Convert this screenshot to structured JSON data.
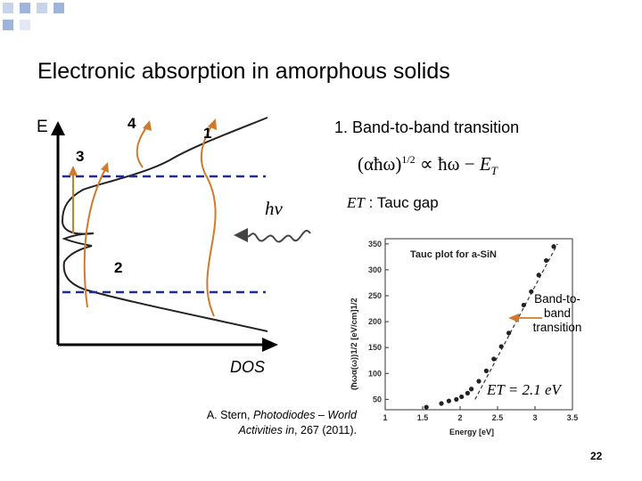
{
  "slide": {
    "title": "Electronic absorption in amorphous solids",
    "page_number": "22"
  },
  "diagram": {
    "energy_axis_label": "E",
    "dos_axis_label": "DOS",
    "photon_label": "hν",
    "transition_numbers": {
      "one": "1",
      "two": "2",
      "three": "3",
      "four": "4"
    }
  },
  "text": {
    "heading": "1.  Band-to-band transition",
    "tauc_gap_symbol": "ET",
    "tauc_gap_label": " : Tauc gap",
    "equation": {
      "lhs": "(αħω)",
      "exp": "1/2",
      "rel": " ∝ ħω − ",
      "rhs": "E",
      "rhs_sub": "T"
    }
  },
  "reference": {
    "line1_prefix": "A. Stern, ",
    "line1_italic": "Photodiodes – World",
    "line2_italic": "Activities in",
    "line2_suffix": ", 267 (2011)."
  },
  "colors": {
    "accent": "#d07a2a",
    "dashed": "#1f2a9c",
    "curve": "#222222"
  },
  "chart_data": {
    "type": "scatter",
    "title": "Tauc plot for a-SiN",
    "xlabel": "Energy [eV]",
    "ylabel": "(ħωα(ω))1/2 [eV/cm]1/2",
    "xlim": [
      1,
      3.5
    ],
    "ylim": [
      30,
      360
    ],
    "x_ticks": [
      "1",
      "1.5",
      "2",
      "2.5",
      "3",
      "3.5"
    ],
    "y_ticks": [
      "50",
      "100",
      "150",
      "200",
      "250",
      "300",
      "350"
    ],
    "points": {
      "x": [
        1.55,
        1.75,
        1.85,
        1.95,
        2.02,
        2.1,
        2.15,
        2.25,
        2.35,
        2.45,
        2.55,
        2.65,
        2.75,
        2.85,
        2.95,
        3.05,
        3.15,
        3.25
      ],
      "y": [
        35,
        42,
        47,
        50,
        55,
        62,
        70,
        85,
        105,
        128,
        152,
        178,
        205,
        232,
        258,
        290,
        318,
        345
      ]
    },
    "fit_line": {
      "x": [
        2.2,
        3.3
      ],
      "y": [
        50,
        350
      ]
    },
    "annotation": "Band-to-band transition",
    "gap_label": "ET = 2.1 eV"
  }
}
